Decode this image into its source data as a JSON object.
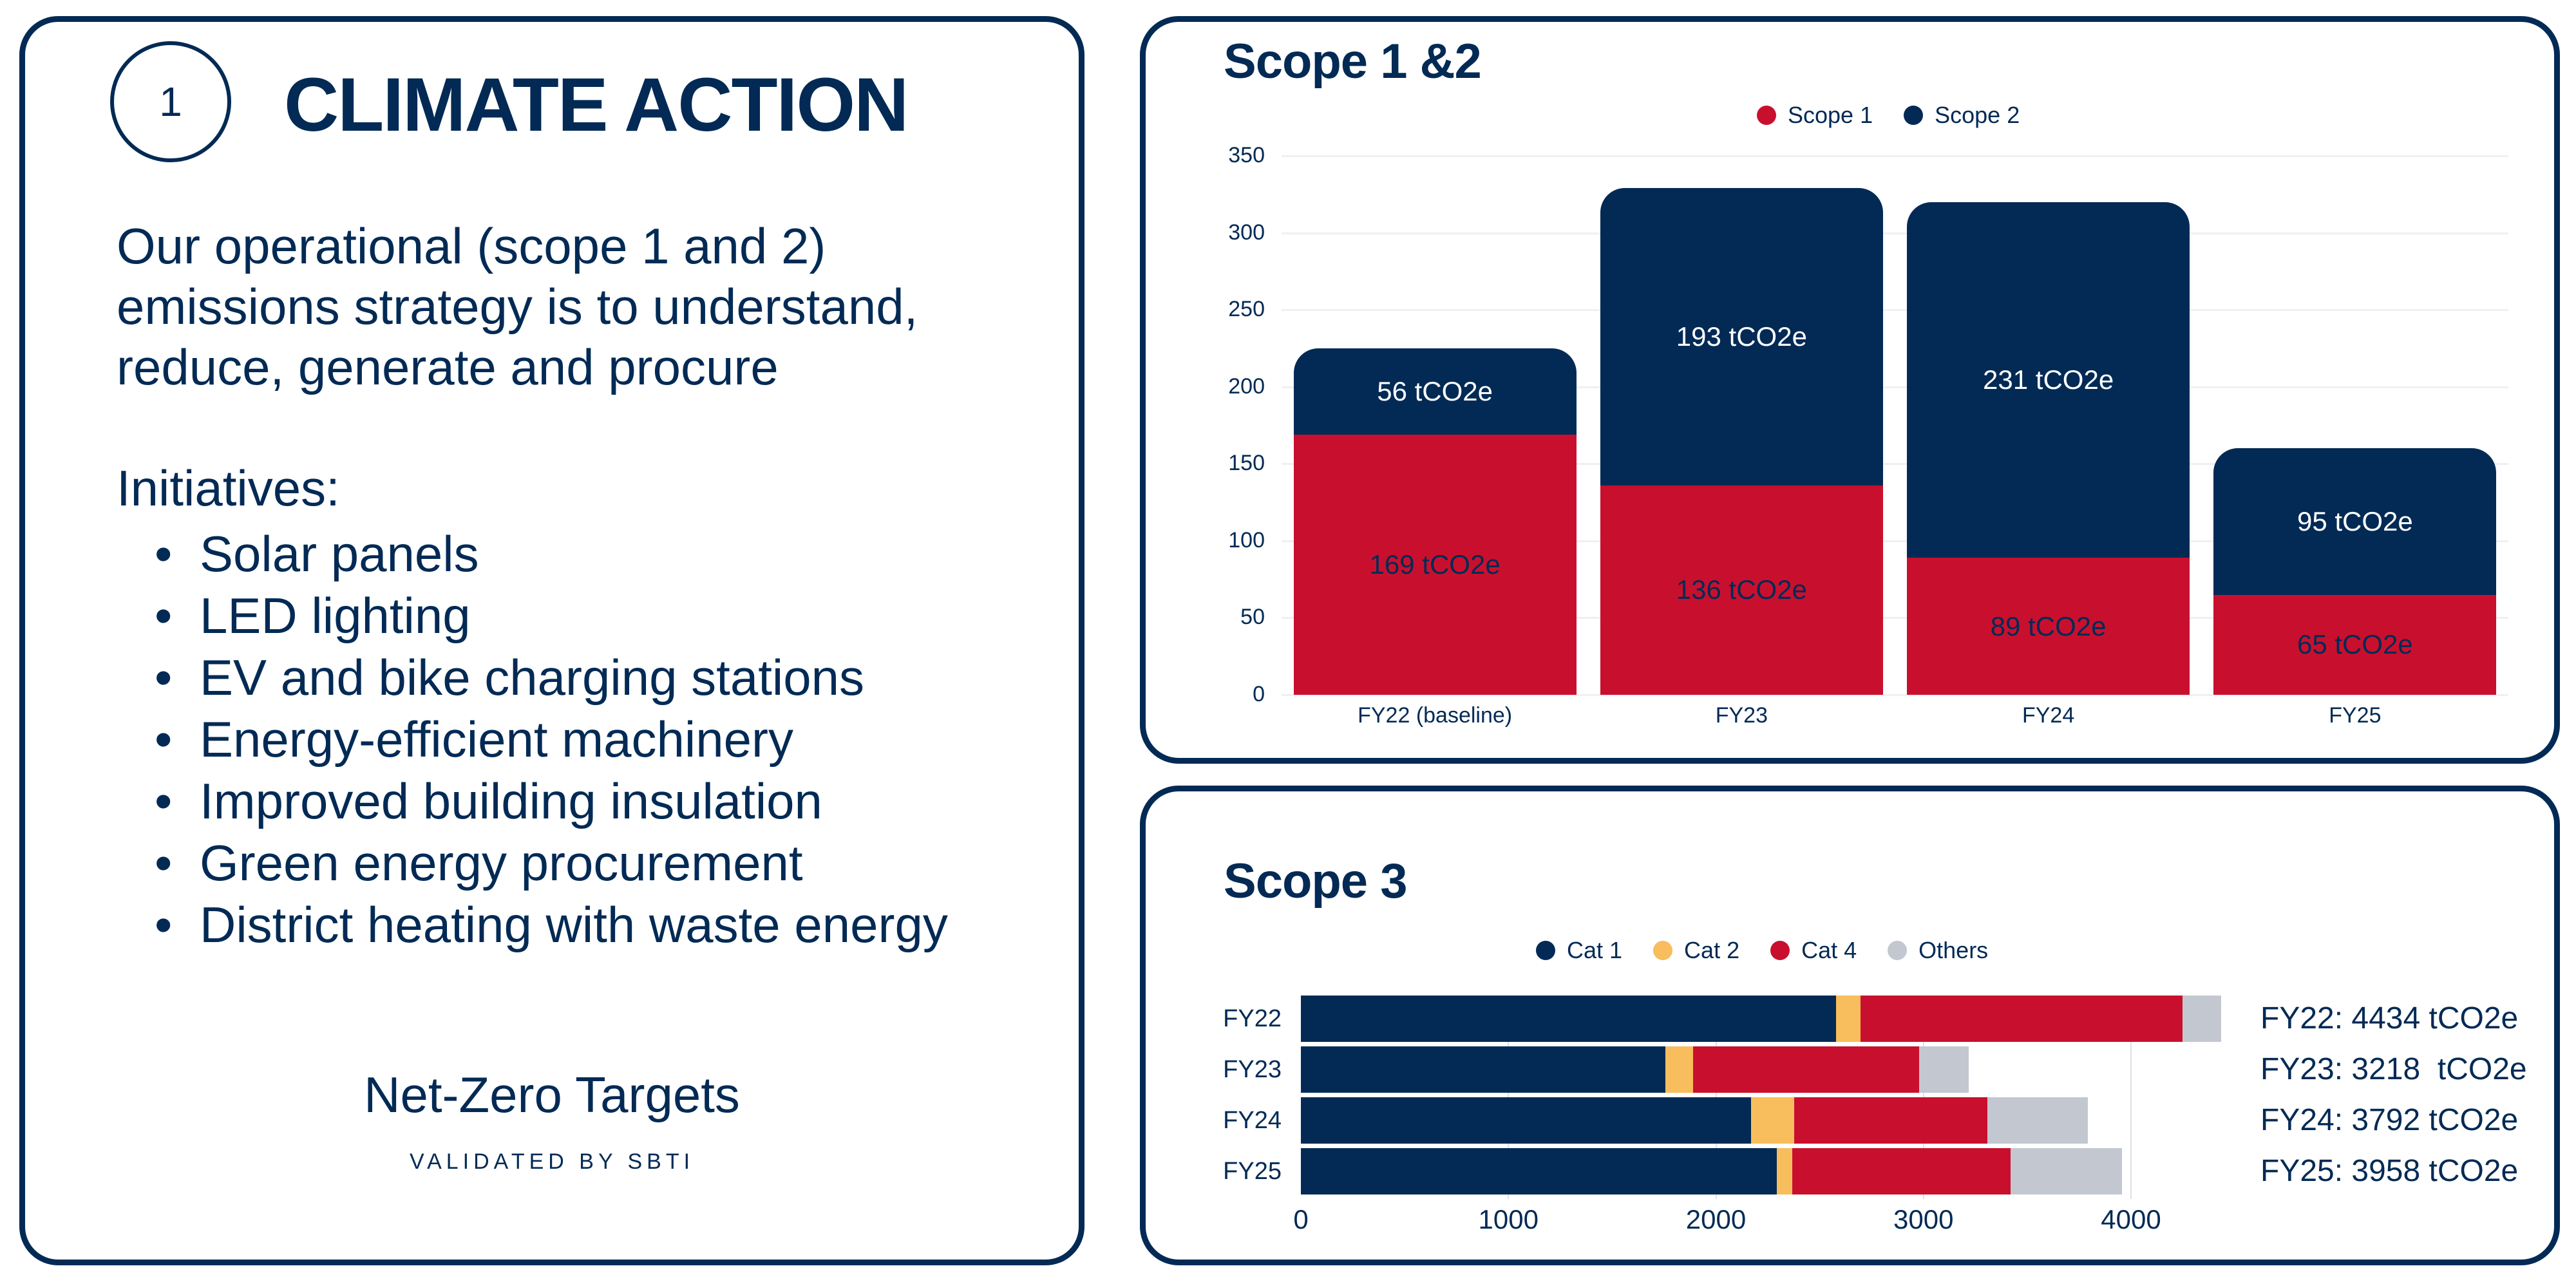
{
  "left": {
    "number": "1",
    "title": "CLIMATE ACTION",
    "strategy_lines": [
      "Our operational (scope 1 and 2)",
      "emissions strategy is to understand,",
      "reduce, generate and procure"
    ],
    "initiatives_label": "Initiatives:",
    "bullet": "•",
    "initiatives": [
      "Solar panels",
      "LED lighting",
      "EV and bike charging stations",
      "Energy-efficient machinery",
      "Improved building insulation",
      "Green energy procurement",
      "District heating with waste energy"
    ],
    "net_zero": "Net-Zero Targets",
    "validated": "VALIDATED BY SBTI"
  },
  "colors": {
    "navy": "#022a55",
    "red": "#c8102e",
    "yellow": "#f8bd5c",
    "grey": "#c3c8d0"
  },
  "chart_data": [
    {
      "type": "bar",
      "stacked": true,
      "orientation": "vertical",
      "title": "Scope 1 &2",
      "categories": [
        "FY22 (baseline)",
        "FY23",
        "FY24",
        "FY25"
      ],
      "series": [
        {
          "name": "Scope 1",
          "color": "#c8102e",
          "values": [
            169,
            136,
            89,
            65
          ],
          "labels": [
            "169 tCO2e",
            "136 tCO2e",
            "89 tCO2e",
            "65 tCO2e"
          ]
        },
        {
          "name": "Scope 2",
          "color": "#022a55",
          "values": [
            56,
            193,
            231,
            95
          ],
          "labels": [
            "56 tCO2e",
            "193 tCO2e",
            "231 tCO2e",
            "95 tCO2e"
          ]
        }
      ],
      "yticks": [
        0,
        50,
        100,
        150,
        200,
        250,
        300,
        350
      ],
      "ylim": [
        0,
        350
      ],
      "grid": true,
      "legend": "top-center"
    },
    {
      "type": "bar",
      "stacked": true,
      "orientation": "horizontal",
      "title": "Scope 3",
      "categories": [
        "FY22",
        "FY23",
        "FY24",
        "FY25"
      ],
      "series": [
        {
          "name": "Cat 1",
          "color": "#022a55",
          "values": [
            2580,
            1755,
            2168,
            2292
          ]
        },
        {
          "name": "Cat 2",
          "color": "#f8bd5c",
          "values": [
            118,
            134,
            208,
            77
          ]
        },
        {
          "name": "Cat 4",
          "color": "#c8102e",
          "values": [
            1550,
            1091,
            933,
            1050
          ]
        },
        {
          "name": "Others",
          "color": "#c3c8d0",
          "values": [
            186,
            238,
            483,
            539
          ]
        }
      ],
      "xticks": [
        0,
        1000,
        2000,
        3000,
        4000
      ],
      "xlim": [
        0,
        4000
      ],
      "grid": true,
      "legend": "top-center",
      "totals": [
        "FY22: 4434 tCO2e",
        "FY23: 3218  tCO2e",
        "FY24: 3792 tCO2e",
        "FY25: 3958 tCO2e"
      ]
    }
  ]
}
